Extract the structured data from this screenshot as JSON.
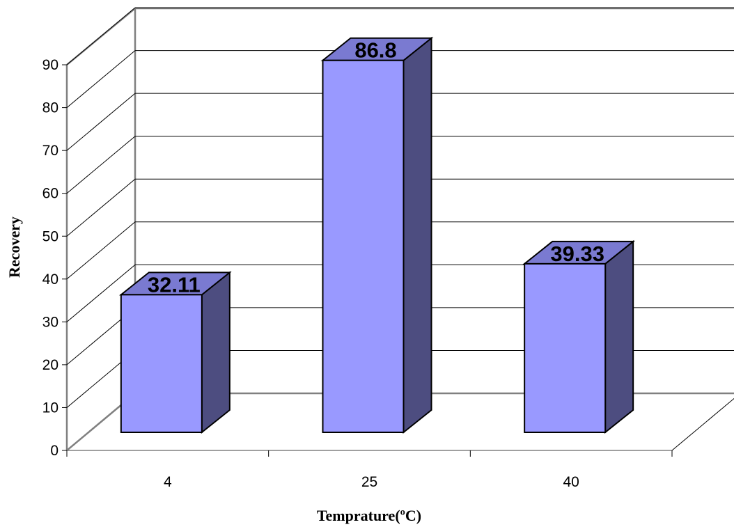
{
  "chart_data": {
    "type": "bar",
    "title": "",
    "xlabel": "Temprature(ºC)",
    "ylabel": "Recovery",
    "categories": [
      "4",
      "25",
      "40"
    ],
    "values": [
      32.11,
      86.8,
      39.33
    ],
    "data_labels": [
      "32.11",
      "86.8",
      "39.33"
    ],
    "y_ticks": [
      "0",
      "10",
      "20",
      "30",
      "40",
      "50",
      "60",
      "70",
      "80",
      "90"
    ],
    "ylim": [
      0,
      90
    ],
    "grid": true,
    "legend": "none",
    "three_d": true,
    "colors": {
      "bar_front": "#9999ff",
      "bar_top": "#7a7ad1",
      "bar_side": "#4d4d80",
      "gridline": "#000000",
      "wall": "#808080"
    }
  }
}
